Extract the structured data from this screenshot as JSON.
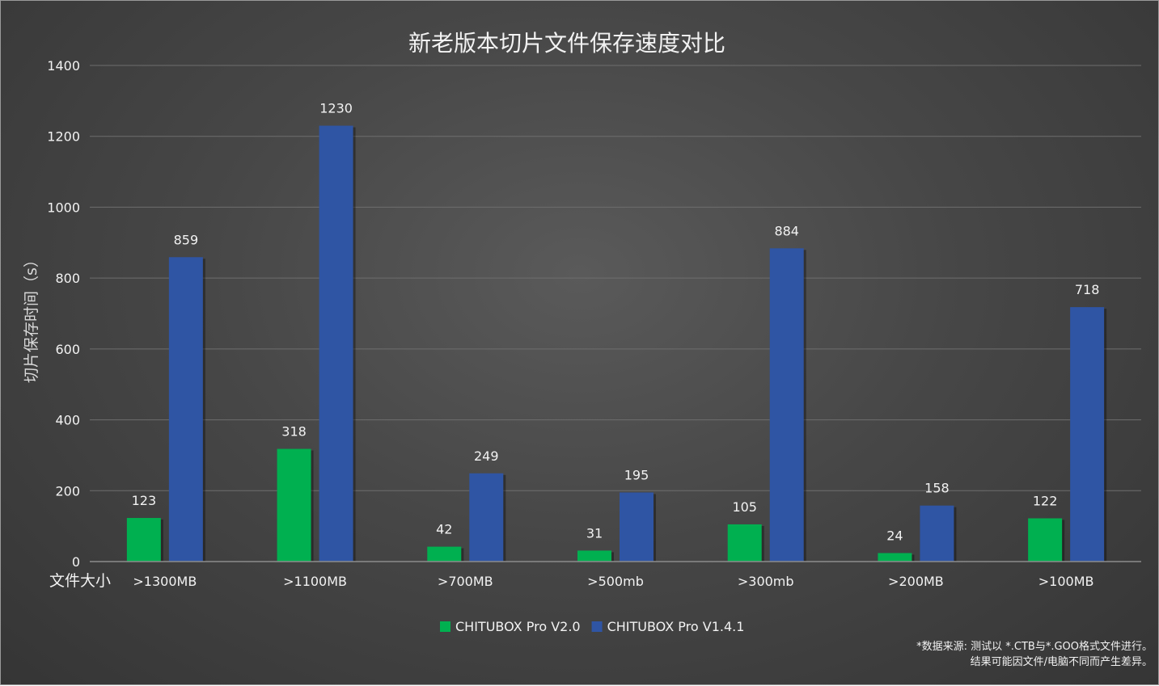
{
  "chart_data": {
    "type": "bar",
    "title": "新老版本切片文件保存速度对比",
    "ylabel": "切片保存时间（s）",
    "xlabel": "文件大小",
    "categories": [
      ">1300MB",
      ">1100MB",
      ">700MB",
      ">500mb",
      ">300mb",
      ">200MB",
      ">100MB"
    ],
    "series": [
      {
        "name": "CHITUBOX Pro V2.0",
        "color": "#00b050",
        "values": [
          123,
          318,
          42,
          31,
          105,
          24,
          122
        ]
      },
      {
        "name": "CHITUBOX Pro V1.4.1",
        "color": "#2f55a4",
        "values": [
          859,
          1230,
          249,
          195,
          884,
          158,
          718
        ]
      }
    ],
    "ylim": [
      0,
      1400
    ],
    "yticks": [
      0,
      200,
      400,
      600,
      800,
      1000,
      1200,
      1400
    ],
    "grid": true,
    "legend_position": "bottom-center"
  },
  "footnote": {
    "line1": "*数据来源: 测试以 *.CTB与*.GOO格式文件进行。",
    "line2": "结果可能因文件/电脑不同而产生差异。"
  }
}
